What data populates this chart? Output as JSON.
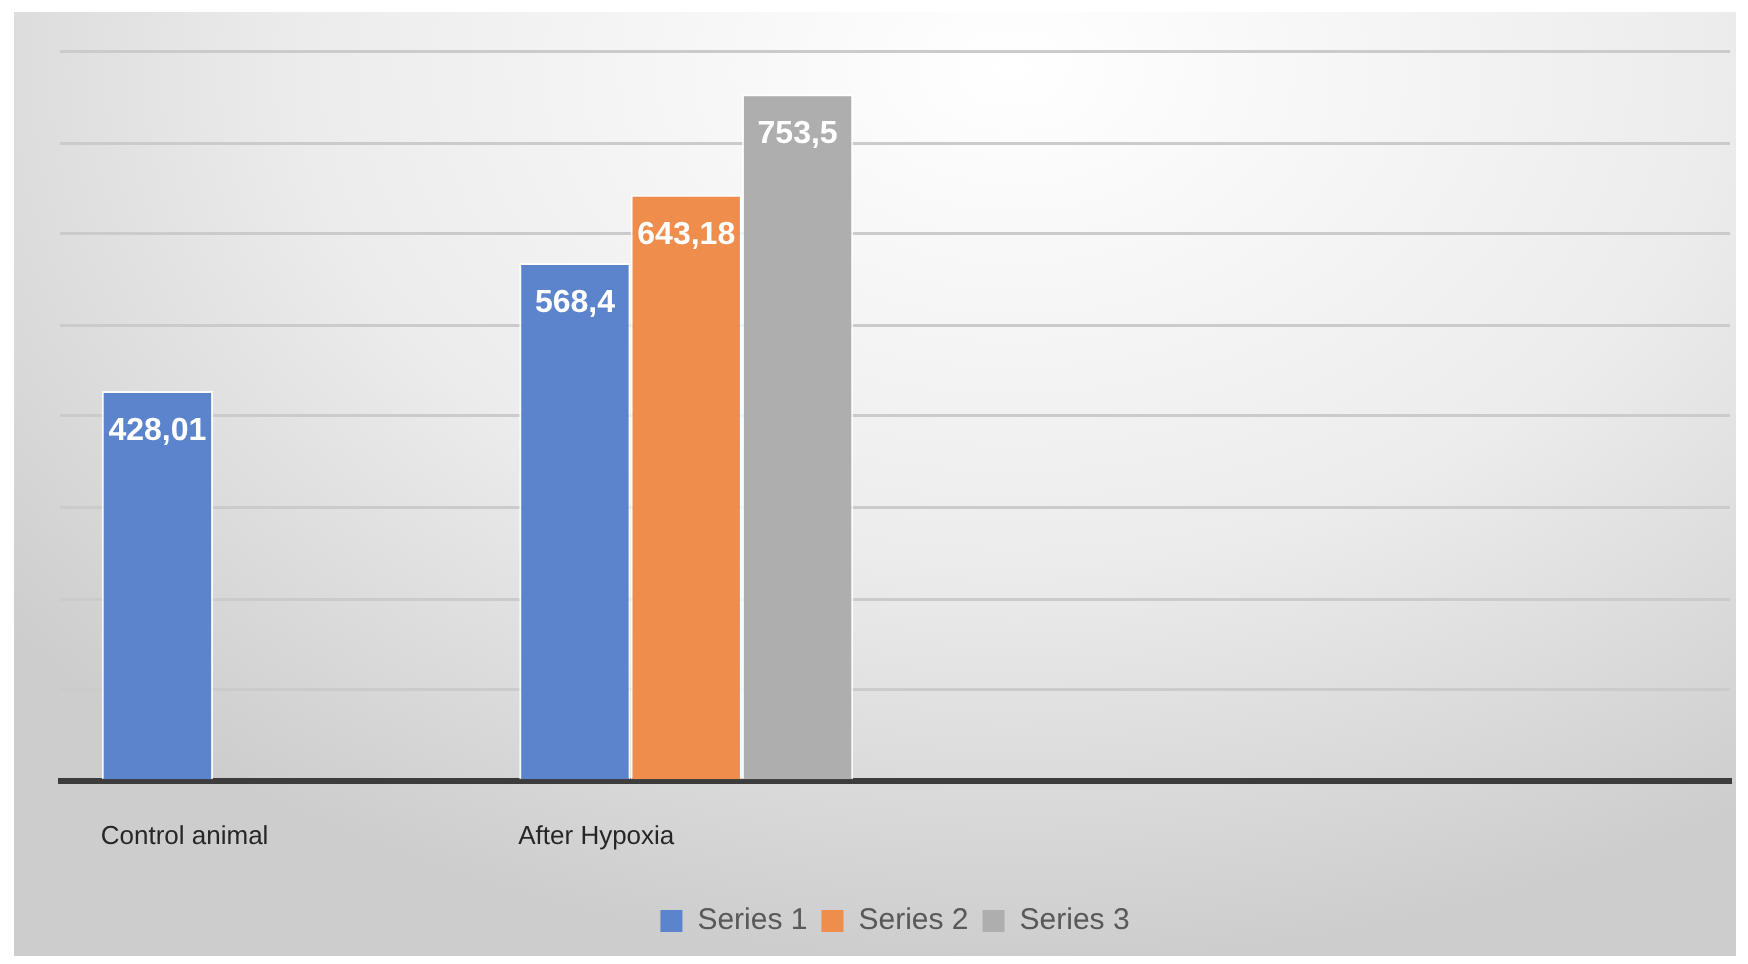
{
  "chart_data": {
    "type": "bar",
    "categories": [
      "Control animal",
      "After Hypoxia",
      null,
      null
    ],
    "series": [
      {
        "name": "Series 1",
        "color": "#5b84cc",
        "values": [
          428.01,
          568.4,
          null,
          null
        ],
        "value_labels": [
          "428,01",
          "568,4",
          null,
          null
        ]
      },
      {
        "name": "Series 2",
        "color": "#ee8d4c",
        "values": [
          null,
          643.18,
          null,
          null
        ],
        "value_labels": [
          null,
          "643,18",
          null,
          null
        ]
      },
      {
        "name": "Series 3",
        "color": "#aeaeae",
        "values": [
          null,
          753.5,
          null,
          null
        ],
        "value_labels": [
          null,
          "753,5",
          null,
          null
        ]
      }
    ],
    "ylim": [
      0,
      800
    ],
    "yticks": [
      {
        "value": 0,
        "label": null
      },
      {
        "value": 100,
        "label": null
      },
      {
        "value": 200,
        "label": null
      },
      {
        "value": 300,
        "label": null
      },
      {
        "value": 400,
        "label": null
      },
      {
        "value": 500,
        "label": null
      },
      {
        "value": 600,
        "label": null
      },
      {
        "value": 700,
        "label": null
      },
      {
        "value": 800,
        "label": null
      }
    ],
    "grid": "y",
    "legend": "bottom",
    "tick_labels": "x"
  }
}
